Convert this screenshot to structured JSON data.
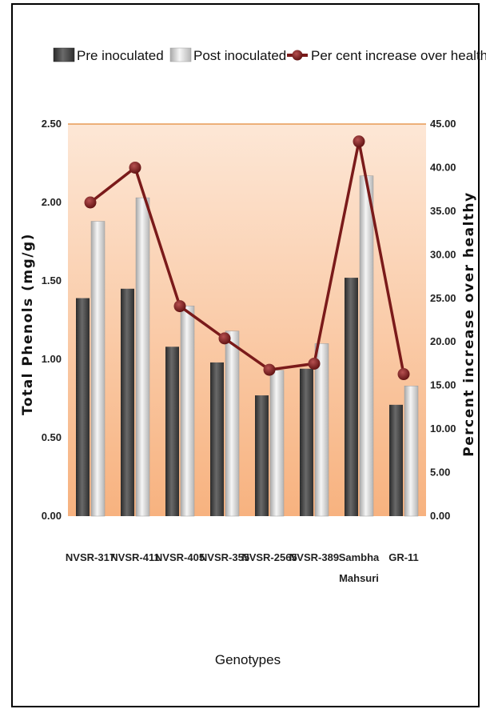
{
  "chart_data": {
    "type": "bar",
    "categories": [
      "NVSR-317",
      "NVSR-411",
      "NVSR-405",
      "NVSR-355",
      "NVSR-2565",
      "NVSR-389",
      "Sambha Mahsuri",
      "GR-11"
    ],
    "category_lines": [
      [
        "NVSR-317"
      ],
      [
        "NVSR-411"
      ],
      [
        "NVSR-405"
      ],
      [
        "NVSR-355"
      ],
      [
        "NVSR-2565"
      ],
      [
        "NVSR-389"
      ],
      [
        "Sambha",
        "Mahsuri"
      ],
      [
        "GR-11"
      ]
    ],
    "series": [
      {
        "name": "Pre inoculated",
        "type": "bar",
        "axis": "left",
        "values": [
          1.39,
          1.45,
          1.08,
          0.98,
          0.77,
          0.94,
          1.52,
          0.71
        ],
        "color": "#404040"
      },
      {
        "name": "Post inoculated",
        "type": "bar",
        "axis": "left",
        "values": [
          1.88,
          2.03,
          1.34,
          1.18,
          0.93,
          1.1,
          2.17,
          0.83
        ],
        "color": "#d8d8d8"
      },
      {
        "name": "Per cent increase over healthy",
        "type": "line",
        "axis": "right",
        "values": [
          36.0,
          40.0,
          24.1,
          20.4,
          16.8,
          17.5,
          43.0,
          16.3
        ],
        "color": "#7a1a1a"
      }
    ],
    "xlabel": "Genotypes",
    "ylabel": "Total Phenols (mg/g)",
    "y2label": "Percent increase over healthy",
    "ylim": [
      0,
      2.5
    ],
    "y2lim": [
      0,
      45
    ],
    "yticks": [
      "0.00",
      "0.50",
      "1.00",
      "1.50",
      "2.00",
      "2.50"
    ],
    "y2ticks": [
      "0.00",
      "5.00",
      "10.00",
      "15.00",
      "20.00",
      "25.00",
      "30.00",
      "35.00",
      "40.00",
      "45.00"
    ],
    "legend_position": "top",
    "grid": false,
    "background": "orange-gradient"
  }
}
